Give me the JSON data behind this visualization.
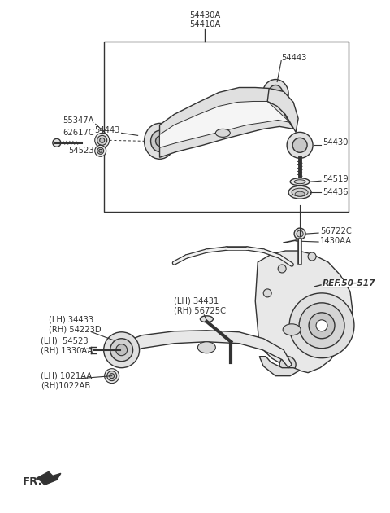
{
  "background_color": "#ffffff",
  "fig_width": 4.8,
  "fig_height": 6.3,
  "dpi": 100,
  "line_color": "#333333",
  "labels": {
    "top_title_line1": "54430A",
    "top_title_line2": "54410A",
    "box_54443_left": "54443",
    "box_54443_top": "54443",
    "box_54430": "54430",
    "box_54519": "54519",
    "box_54436": "54436",
    "left_55347A": "55347A",
    "left_62617C": "62617C",
    "left_54523": "54523",
    "lower_56722C": "56722C",
    "lower_1430AA": "1430AA",
    "lower_34431": "(LH) 34431",
    "lower_56725C": "(RH) 56725C",
    "lower_34433": "(LH) 34433",
    "lower_54223D": "(RH) 54223D",
    "lower_54523": "(LH)  54523",
    "lower_1330AA": "(RH) 1330AA",
    "lower_1021AA": "(LH) 1021AA",
    "lower_1022AB": "(RH)1022AB",
    "ref_label": "REF.50-517",
    "fr_label": "FR."
  }
}
